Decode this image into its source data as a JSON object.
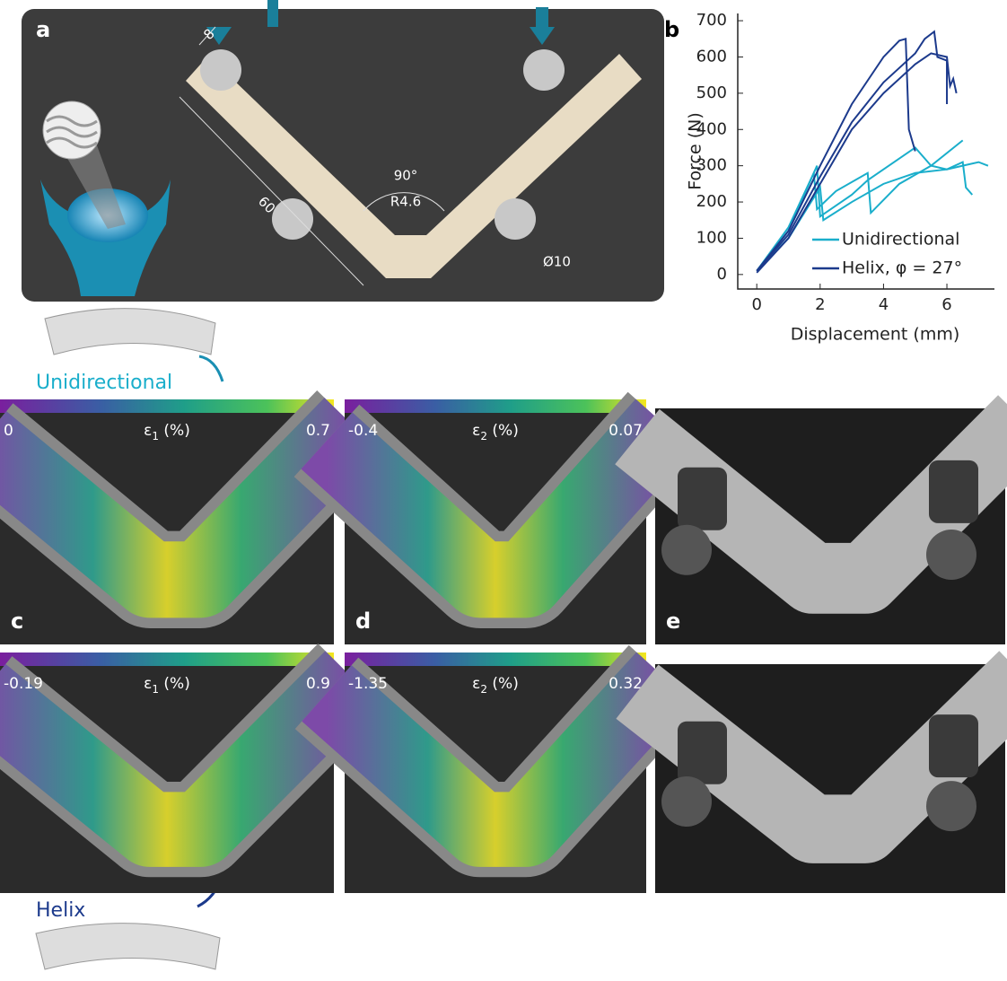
{
  "panel_labels": [
    "a",
    "b",
    "c",
    "d",
    "e"
  ],
  "panel_a": {
    "dimensions": [
      "8",
      "60",
      "90°",
      "R4.6",
      "Ø10"
    ]
  },
  "chart_data": {
    "type": "line",
    "xlabel": "Displacement (mm)",
    "ylabel": "Force (N)",
    "xlim": [
      -0.6,
      7.5
    ],
    "ylim": [
      -40,
      720
    ],
    "xticks": [
      0,
      2,
      4,
      6
    ],
    "yticks": [
      0,
      100,
      200,
      300,
      400,
      500,
      600,
      700
    ],
    "series": [
      {
        "name": "Unidirectional",
        "color": "#1aaecb",
        "curves": [
          {
            "x": [
              0,
              1,
              1.8,
              1.9,
              2.5,
              3.5,
              3.6,
              4.5,
              5.5,
              6.5
            ],
            "values": [
              10,
              130,
              280,
              180,
              230,
              280,
              170,
              250,
              300,
              370
            ]
          },
          {
            "x": [
              0,
              1,
              1.9,
              2,
              3,
              3.5,
              4.5,
              5,
              5.5,
              6,
              6.5,
              7,
              7.3
            ],
            "values": [
              10,
              120,
              300,
              160,
              220,
              260,
              320,
              350,
              300,
              290,
              300,
              310,
              300
            ]
          },
          {
            "x": [
              0,
              1,
              2,
              2.1,
              3,
              4,
              5,
              6,
              6.5,
              6.6,
              6.8
            ],
            "values": [
              10,
              100,
              240,
              150,
              200,
              250,
              280,
              290,
              310,
              240,
              220
            ]
          }
        ]
      },
      {
        "name": "Helix, φ = 27°",
        "color": "#1c3a8c",
        "curves": [
          {
            "x": [
              0,
              1,
              2,
              3,
              4,
              4.5,
              4.7,
              4.8,
              5
            ],
            "values": [
              10,
              120,
              300,
              470,
              600,
              645,
              650,
              400,
              340
            ]
          },
          {
            "x": [
              0,
              1,
              2,
              3,
              4,
              5,
              5.3,
              5.6,
              5.7,
              6,
              6
            ],
            "values": [
              10,
              110,
              270,
              420,
              530,
              610,
              650,
              670,
              600,
              590,
              470
            ]
          },
          {
            "x": [
              0,
              1,
              2,
              3,
              4,
              5,
              5.5,
              6,
              6.1,
              6.2,
              6.3
            ],
            "values": [
              5,
              100,
              250,
              400,
              500,
              580,
              610,
              600,
              520,
              540,
              500
            ]
          }
        ]
      }
    ]
  },
  "layouts": [
    "Unidirectional",
    "Helix"
  ],
  "strain_maps": [
    {
      "min": "0",
      "symbol": "ε",
      "sub": "1",
      "unit": " (%)",
      "max": "0.7"
    },
    {
      "min": "-0.4",
      "symbol": "ε",
      "sub": "2",
      "unit": " (%)",
      "max": "0.07"
    },
    {
      "min": "-0.19",
      "symbol": "ε",
      "sub": "1",
      "unit": " (%)",
      "max": "0.9"
    },
    {
      "min": "-1.35",
      "symbol": "ε",
      "sub": "2",
      "unit": " (%)",
      "max": "0.32"
    }
  ]
}
